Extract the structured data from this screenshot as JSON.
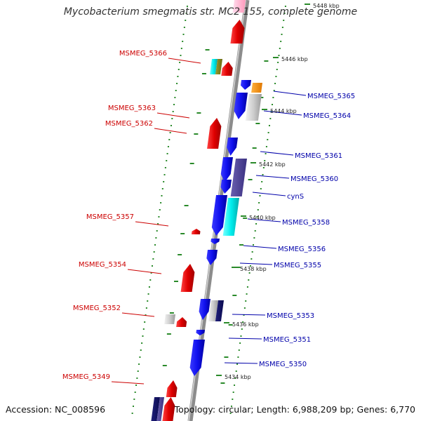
{
  "title": "Mycobacterium smegmatis str. MC2 155, complete genome",
  "accession": "Accession: NC_008596",
  "summary": "Topology: circular; Length: 6,988,209 bp; Genes: 6,770",
  "colors": {
    "forward_label": "#cc0000",
    "reverse_label": "#0000aa",
    "tick": "#2a8a2a",
    "backbone": "#8c8c8c"
  },
  "ticks": [
    "5448 kbp",
    "5446 kbp",
    "5444 kbp",
    "5442 kbp",
    "5440 kbp",
    "5438 kbp",
    "5436 kbp",
    "5434 kbp"
  ],
  "forward_genes": [
    "MSMEG_5366",
    "MSMEG_5363",
    "MSMEG_5362",
    "MSMEG_5357",
    "MSMEG_5354",
    "MSMEG_5352",
    "MSMEG_5349"
  ],
  "reverse_genes": [
    "MSMEG_5365",
    "MSMEG_5364",
    "MSMEG_5361",
    "MSMEG_5360",
    "cynS",
    "MSMEG_5358",
    "MSMEG_5356",
    "MSMEG_5355",
    "MSMEG_5353",
    "MSMEG_5351",
    "MSMEG_5350"
  ]
}
